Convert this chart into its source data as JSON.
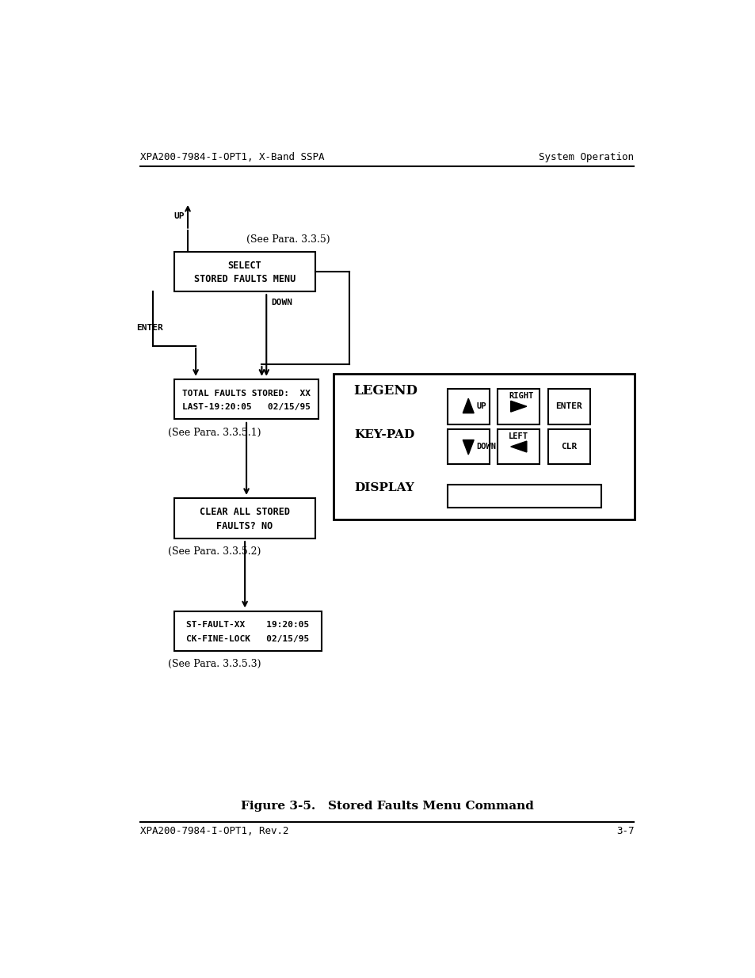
{
  "header_left": "XPA200-7984-I-OPT1, X-Band SSPA",
  "header_right": "System Operation",
  "footer_left": "XPA200-7984-I-OPT1, Rev.2",
  "footer_right": "3-7",
  "figure_caption": "Figure 3-5.   Stored Faults Menu Command",
  "box1_lines": [
    "SELECT",
    "STORED FAULTS MENU"
  ],
  "box2_lines": [
    "TOTAL FAULTS STORED:  XX",
    "LAST-19:20:05   02/15/95"
  ],
  "box3_lines": [
    "CLEAR ALL STORED",
    "FAULTS? NO"
  ],
  "box4_lines": [
    "ST-FAULT-XX    19:20:05",
    "CK-FINE-LOCK   02/15/95"
  ],
  "note_up": "(See Para. 3.3.5)",
  "note_box2": "(See Para. 3.3.5.1)",
  "note_box3": "(See Para. 3.3.5.2)",
  "note_box4": "(See Para. 3.3.5.3)",
  "label_enter": "ENTER",
  "label_down": "DOWN",
  "label_up": "UP",
  "legend_title": "LEGEND",
  "legend_keypad": "KEY-PAD",
  "legend_display": "DISPLAY"
}
